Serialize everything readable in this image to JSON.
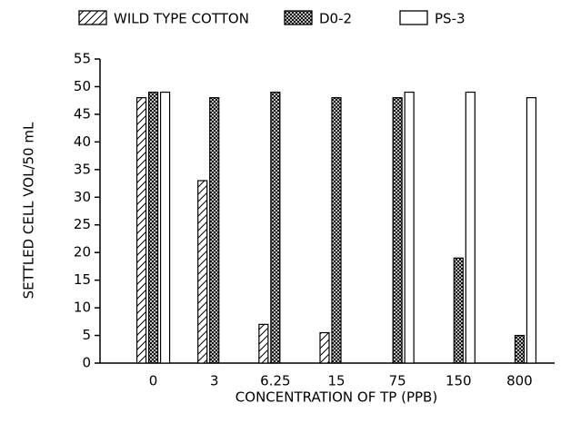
{
  "chart_data": {
    "type": "bar",
    "x_label": "CONCENTRATION OF TP (PPB)",
    "y_label": "SETTLED CELL VOL/50 mL",
    "categories": [
      "0",
      "3",
      "6.25",
      "15",
      "75",
      "150",
      "800"
    ],
    "series": [
      {
        "name": "WILD TYPE COTTON",
        "color": "#000000",
        "pattern": "diagonal",
        "values": [
          48,
          33,
          7,
          5.5,
          null,
          null,
          null
        ]
      },
      {
        "name": "D0-2",
        "color": "#000000",
        "pattern": "crosshatch",
        "values": [
          49,
          48,
          49,
          48,
          48,
          19,
          5
        ]
      },
      {
        "name": "PS-3",
        "color": "#000000",
        "pattern": "none",
        "values": [
          49,
          null,
          null,
          null,
          49,
          49,
          48
        ]
      }
    ],
    "ylim": [
      0,
      55
    ],
    "yticks": [
      0,
      5,
      10,
      15,
      20,
      25,
      30,
      35,
      40,
      45,
      50,
      55
    ],
    "grid": false,
    "legend": "top"
  }
}
